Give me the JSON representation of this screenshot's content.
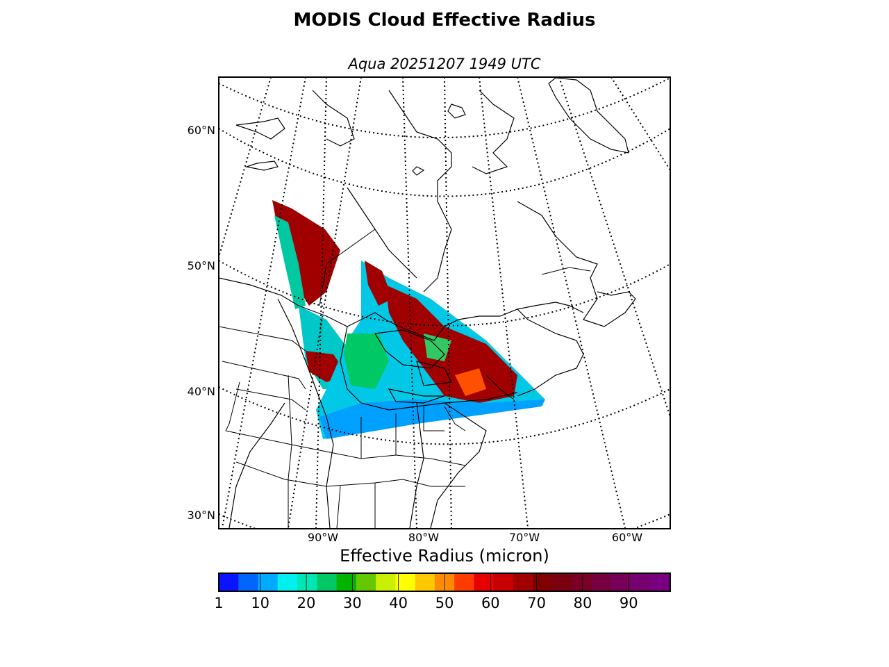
{
  "title": "MODIS Cloud Effective Radius",
  "subtitle": "Aqua 20251207 1949 UTC",
  "lat_labels": [
    "60°N",
    "50°N",
    "40°N",
    "30°N"
  ],
  "lon_labels": [
    "90°W",
    "80°W",
    "70°W",
    "60°W"
  ],
  "colorbar": {
    "label": "Effective Radius (micron)",
    "range": [
      1,
      99
    ],
    "ticks": [
      "1",
      "10",
      "20",
      "30",
      "40",
      "50",
      "60",
      "70",
      "80",
      "90"
    ],
    "tick_values": [
      1,
      10,
      20,
      30,
      40,
      50,
      60,
      70,
      80,
      90
    ],
    "colors": [
      "#0a14ff",
      "#0064ff",
      "#00aaff",
      "#00f0f0",
      "#00e6b4",
      "#00c864",
      "#00b400",
      "#64c800",
      "#c8f000",
      "#ffff00",
      "#ffc800",
      "#ff8c00",
      "#ff3c00",
      "#e60000",
      "#c80000",
      "#a00000",
      "#800000",
      "#7a0010",
      "#780028",
      "#760040",
      "#760058",
      "#760070",
      "#780080"
    ]
  }
}
